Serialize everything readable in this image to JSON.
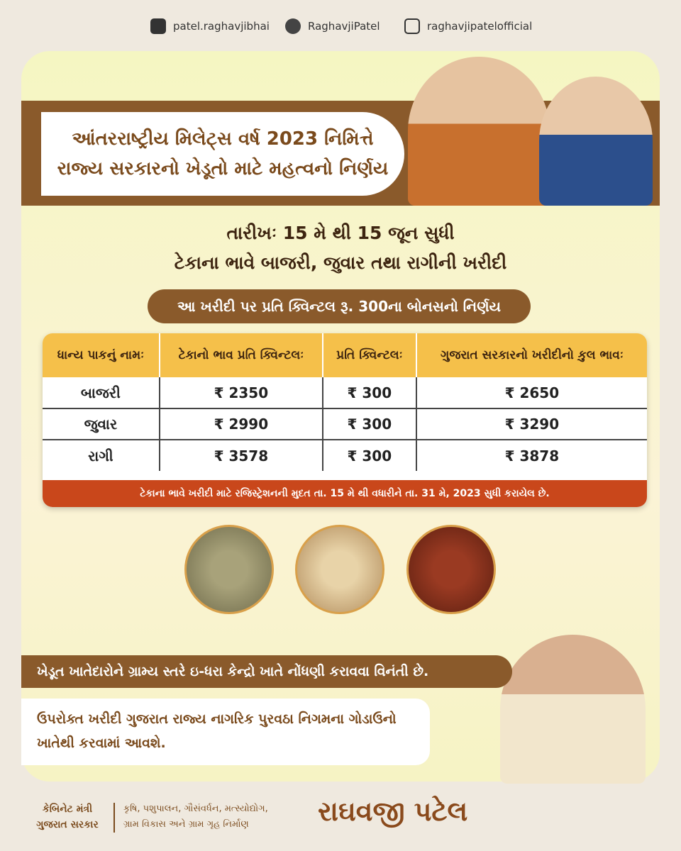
{
  "social": {
    "facebook": "patel.raghavjibhai",
    "twitter": "RaghavjiPatel",
    "instagram": "raghavjipatelofficial"
  },
  "header": {
    "title_lines": [
      "આંતરરાષ્ટ્રીય મિલેટ્સ વર્ષ 2023 નિમિત્તે",
      "રાજ્ય સરકારનો ખેડૂતો માટે મહત્વનો નિર્ણય"
    ]
  },
  "subheading": {
    "date": "તારીખઃ 15 મે થી 15 જૂન સુધી",
    "purchase": "ટેકાના ભાવે બાજરી, જુવાર તથા રાગીની ખરીદી"
  },
  "bonus": "આ ખરીદી પર પ્રતિ ક્વિન્ટલ રૂ. 300ના બોનસનો નિર્ણય",
  "table": {
    "headers": [
      "ધાન્ય પાકનું નામઃ",
      "ટેકાનો ભાવ પ્રતિ ક્વિન્ટલઃ",
      "પ્રતિ ક્વિન્ટલઃ",
      "ગુજરાત સરકારનો ખરીદીનો કુલ ભાવઃ"
    ],
    "rows": [
      [
        "બાજરી",
        "₹ 2350",
        "₹ 300",
        "₹ 2650"
      ],
      [
        "જુવાર",
        "₹ 2990",
        "₹ 300",
        "₹ 3290"
      ],
      [
        "રાગી",
        "₹ 3578",
        "₹ 300",
        "₹ 3878"
      ]
    ],
    "footnote": "ટેકાના ભાવે ખરીદી માટે રજિસ્ટ્રેશનની મુદત તા. 15 મે થી વધારીને તા. 31 મે, 2023 સુધી કરાયેલ છે."
  },
  "notices": [
    "ખેડૂત ખાતેદારોને ગ્રામ્ય સ્તરે ઇ-ધરા કેન્દ્રો ખાતે નોંધણી કરાવવા વિનંતી છે.",
    "ઉપરોક્ત ખરીદી ગુજરાત રાજ્ય નાગરિક પુરવઠા નિગમના ગોડાઉનો ખાતેથી કરવામાં આવશે."
  ],
  "footer": {
    "role": [
      "કેબિનેટ મંત્રી",
      "ગુજરાત સરકાર"
    ],
    "departments": [
      "કૃષિ, પશુપાલન, ગૌસંવર્ધન, મત્સ્યોદ્યોગ,",
      "ગ્રામ વિકાસ અને ગ્રામ ગૃહ નિર્માણ"
    ],
    "name": "રાઘવજી પટેલ"
  }
}
